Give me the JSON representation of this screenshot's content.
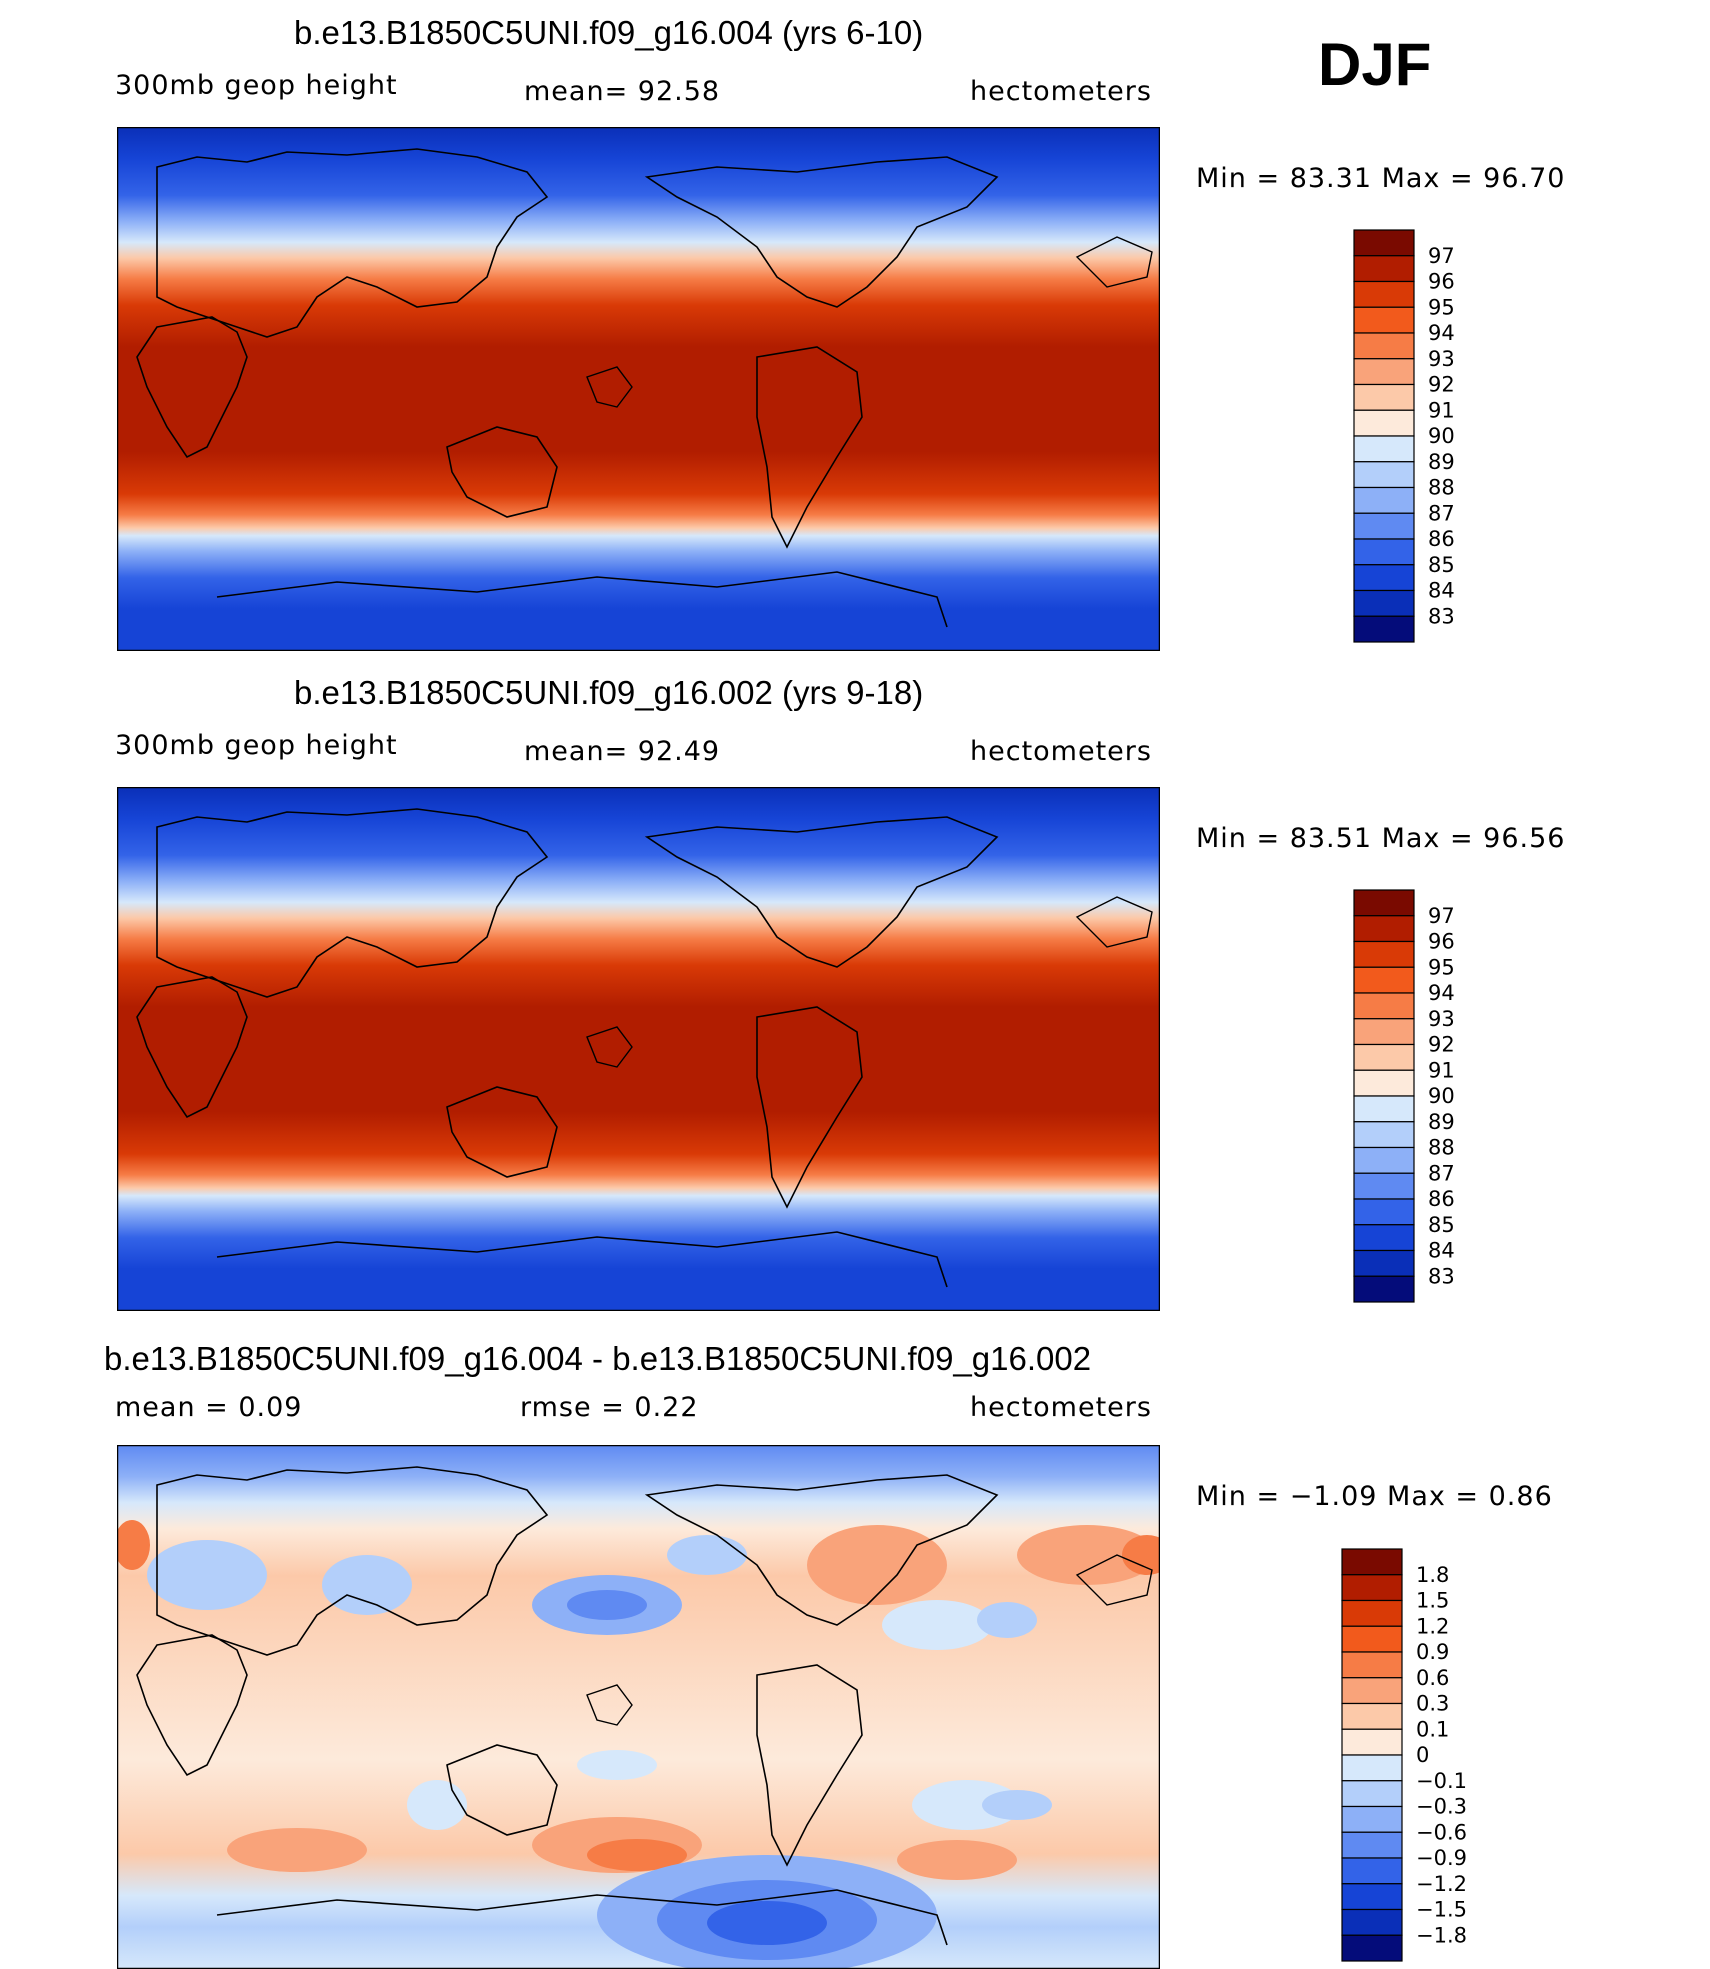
{
  "season": "DJF",
  "panels": [
    {
      "title": "b.e13.B1850C5UNI.f09_g16.004 (yrs 6-10)",
      "left_label": "300mb geop height",
      "center_label": "mean=   92.58",
      "right_label": "hectometers",
      "minmax": "Min =   83.31  Max =   96.70",
      "colorbar": {
        "labels": [
          "97",
          "96",
          "95",
          "94",
          "93",
          "92",
          "91",
          "90",
          "89",
          "88",
          "87",
          "86",
          "85",
          "84",
          "83"
        ],
        "colors": [
          "#7a0a00",
          "#b11d00",
          "#d93a06",
          "#f25a1c",
          "#f67c46",
          "#f9a37a",
          "#fcc9a9",
          "#fdeadb",
          "#d6e8fb",
          "#b3cffa",
          "#8db0f7",
          "#5f8af2",
          "#3363e8",
          "#1644d6",
          "#0a2fb8",
          "#040c7a"
        ]
      }
    },
    {
      "title": "b.e13.B1850C5UNI.f09_g16.002 (yrs 9-18)",
      "left_label": "300mb geop height",
      "center_label": "mean=   92.49",
      "right_label": "hectometers",
      "minmax": "Min =   83.51  Max =   96.56",
      "colorbar": {
        "labels": [
          "97",
          "96",
          "95",
          "94",
          "93",
          "92",
          "91",
          "90",
          "89",
          "88",
          "87",
          "86",
          "85",
          "84",
          "83"
        ],
        "colors": [
          "#7a0a00",
          "#b11d00",
          "#d93a06",
          "#f25a1c",
          "#f67c46",
          "#f9a37a",
          "#fcc9a9",
          "#fdeadb",
          "#d6e8fb",
          "#b3cffa",
          "#8db0f7",
          "#5f8af2",
          "#3363e8",
          "#1644d6",
          "#0a2fb8",
          "#040c7a"
        ]
      }
    },
    {
      "title": "b.e13.B1850C5UNI.f09_g16.004 - b.e13.B1850C5UNI.f09_g16.002",
      "left_label": "mean =     0.09",
      "center_label": "rmse =     0.22",
      "right_label": "hectometers",
      "minmax": "Min =   −1.09  Max =      0.86",
      "colorbar": {
        "labels": [
          "1.8",
          "1.5",
          "1.2",
          "0.9",
          "0.6",
          "0.3",
          "0.1",
          "0",
          "−0.1",
          "−0.3",
          "−0.6",
          "−0.9",
          "−1.2",
          "−1.5",
          "−1.8"
        ],
        "colors": [
          "#7a0a00",
          "#b11d00",
          "#d93a06",
          "#f25a1c",
          "#f67c46",
          "#f9a37a",
          "#fcc9a9",
          "#fdeadb",
          "#d6e8fb",
          "#b3cffa",
          "#8db0f7",
          "#5f8af2",
          "#3363e8",
          "#1644d6",
          "#0a2fb8",
          "#040c7a"
        ]
      }
    }
  ]
}
